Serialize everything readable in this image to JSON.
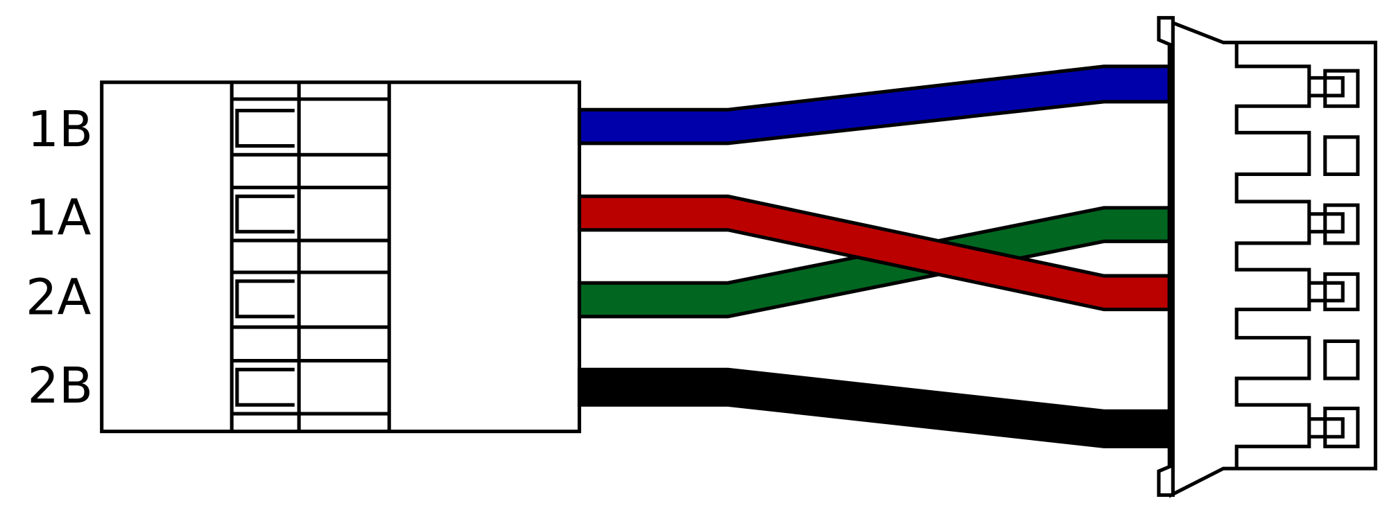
{
  "labels": [
    "1B",
    "1A",
    "2A",
    "2B"
  ]
}
